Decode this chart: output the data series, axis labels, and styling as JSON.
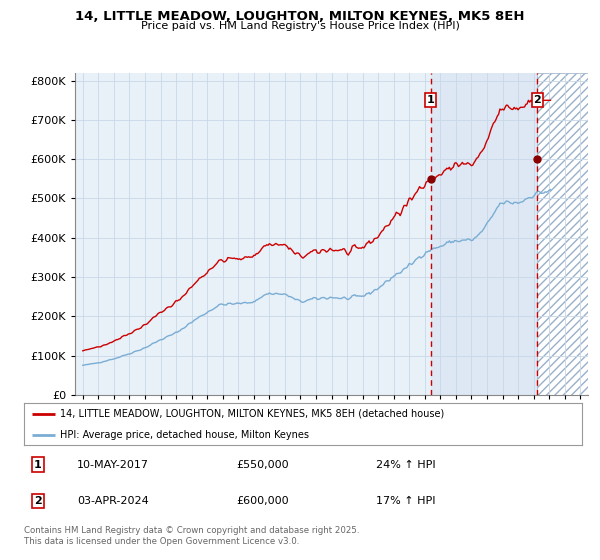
{
  "title": "14, LITTLE MEADOW, LOUGHTON, MILTON KEYNES, MK5 8EH",
  "subtitle": "Price paid vs. HM Land Registry's House Price Index (HPI)",
  "hpi_label": "HPI: Average price, detached house, Milton Keynes",
  "price_label": "14, LITTLE MEADOW, LOUGHTON, MILTON KEYNES, MK5 8EH (detached house)",
  "transaction1_date": "10-MAY-2017",
  "transaction1_price": 550000,
  "transaction1_label": "24% ↑ HPI",
  "transaction2_date": "03-APR-2024",
  "transaction2_price": 600000,
  "transaction2_label": "17% ↑ HPI",
  "footer": "Contains HM Land Registry data © Crown copyright and database right 2025.\nThis data is licensed under the Open Government Licence v3.0.",
  "price_color": "#cc0000",
  "hpi_color": "#7aadd4",
  "annotation_color": "#cc0000",
  "bg_color": "#ffffff",
  "grid_color": "#c8d8e8",
  "plot_bg_color": "#e8f0f8",
  "hatch_color": "#9ab0c8",
  "ytick_labels": [
    "£0",
    "£100K",
    "£200K",
    "£300K",
    "£400K",
    "£500K",
    "£600K",
    "£700K",
    "£800K"
  ],
  "yticks": [
    0,
    100000,
    200000,
    300000,
    400000,
    500000,
    600000,
    700000,
    800000
  ],
  "xlim": [
    1994.5,
    2027.5
  ],
  "ylim": [
    0,
    820000
  ],
  "vline1_x": 2017.37,
  "vline2_x": 2024.25,
  "transaction1_x": 2017.37,
  "transaction1_y": 550000,
  "transaction2_x": 2024.25,
  "transaction2_y": 600000
}
